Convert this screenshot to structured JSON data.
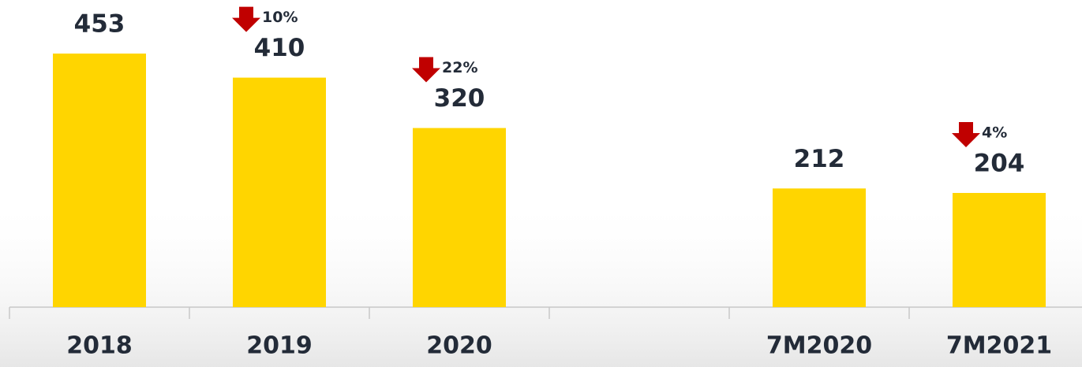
{
  "chart_data": {
    "type": "bar",
    "categories": [
      "2018",
      "2019",
      "2020",
      null,
      "7M2020",
      "7M2021"
    ],
    "values": [
      453,
      410,
      320,
      null,
      212,
      204
    ],
    "change_labels": [
      null,
      "10%",
      "22%",
      null,
      null,
      "4%"
    ],
    "color": "#ffd500",
    "ylim": [
      0,
      500
    ]
  }
}
